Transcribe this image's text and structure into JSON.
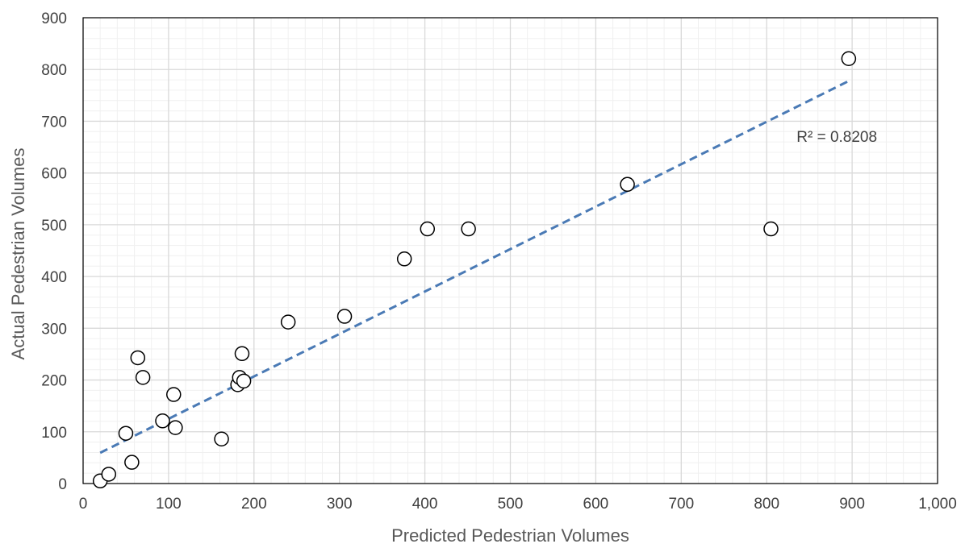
{
  "chart_data": {
    "type": "scatter",
    "title": "",
    "xlabel": "Predicted Pedestrian Volumes",
    "ylabel": "Actual Pedestrian Volumes",
    "xlim": [
      0,
      1000
    ],
    "ylim": [
      0,
      900
    ],
    "x_major_step": 100,
    "y_major_step": 100,
    "x_minor_step": 20,
    "y_minor_step": 20,
    "x_tick_labels": [
      "0",
      "100",
      "200",
      "300",
      "400",
      "500",
      "600",
      "700",
      "800",
      "900",
      "1,000"
    ],
    "y_tick_labels": [
      "0",
      "100",
      "200",
      "300",
      "400",
      "500",
      "600",
      "700",
      "800",
      "900"
    ],
    "grid": true,
    "legend": "none",
    "series": [
      {
        "marker": "open-circle",
        "points": [
          [
            20,
            5
          ],
          [
            30,
            18
          ],
          [
            50,
            97
          ],
          [
            57,
            41
          ],
          [
            64,
            243
          ],
          [
            70,
            205
          ],
          [
            93,
            121
          ],
          [
            106,
            172
          ],
          [
            108,
            108
          ],
          [
            162,
            86
          ],
          [
            181,
            191
          ],
          [
            183,
            205
          ],
          [
            186,
            251
          ],
          [
            188,
            198
          ],
          [
            240,
            312
          ],
          [
            306,
            323
          ],
          [
            376,
            434
          ],
          [
            403,
            492
          ],
          [
            451,
            492
          ],
          [
            637,
            578
          ],
          [
            805,
            492
          ],
          [
            896,
            821
          ]
        ]
      }
    ],
    "trendline": {
      "type": "linear",
      "style": "dashed",
      "color": "#4a7ab5",
      "x_range": [
        20,
        896
      ],
      "slope": 0.82,
      "intercept": 43,
      "r_squared_label": "R² = 0.8208"
    },
    "colors": {
      "marker_stroke": "#000000",
      "marker_fill": "#ffffff",
      "major_grid": "#d9d9d9",
      "minor_grid": "#f0f0f0",
      "axis": "#000000"
    }
  }
}
